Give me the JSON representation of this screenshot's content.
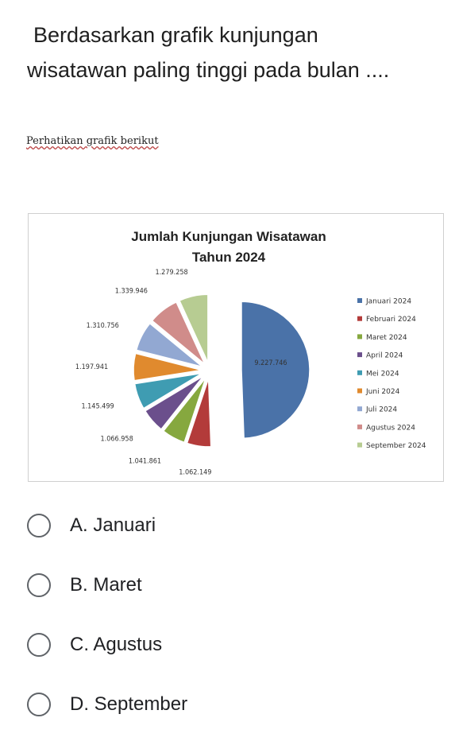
{
  "question": {
    "line1": "Berdasarkan grafik  kunjungan",
    "line2": "wisatawan paling tinggi pada bulan ...."
  },
  "instruction": "Perhatikan grafik berikut",
  "chart_data": {
    "type": "pie",
    "title": "Jumlah Kunjungan Wisatawan",
    "subtitle": "Tahun 2024",
    "categories": [
      "Januari 2024",
      "Februari 2024",
      "Maret 2024",
      "April 2024",
      "Mei 2024",
      "Juni 2024",
      "Juli 2024",
      "Agustus 2024",
      "September 2024"
    ],
    "labels": [
      "9.227.746",
      "1.062.149",
      "1.041.861",
      "1.066.958",
      "1.145.499",
      "1.197.941",
      "1.310.756",
      "1.339.946",
      "1.279.258"
    ],
    "values": [
      9227746,
      1062149,
      1041861,
      1066958,
      1145499,
      1197941,
      1310756,
      1339946,
      1279258
    ],
    "colors": [
      "#4a72a8",
      "#b33b3a",
      "#86a83f",
      "#6b4f8c",
      "#3f9cb2",
      "#e08a2e",
      "#92a8d2",
      "#d08c8a",
      "#b7cc92"
    ],
    "legend_position": "right",
    "exploded": true
  },
  "options": [
    {
      "label": "A. Januari"
    },
    {
      "label": "B. Maret"
    },
    {
      "label": "C. Agustus"
    },
    {
      "label": "D. September"
    }
  ]
}
